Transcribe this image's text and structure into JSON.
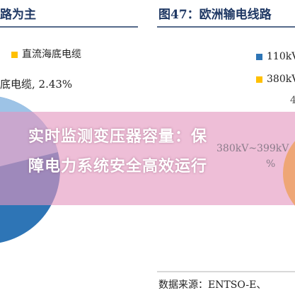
{
  "left_panel": {
    "title": "路为主",
    "legend": [
      "直流海底电缆"
    ],
    "label": "底电缆, 2.43%"
  },
  "right_panel": {
    "title": "图47：欧洲输电线路",
    "legend": [
      "110kV",
      "380kV"
    ],
    "faint_label": "380kV~399kV",
    "faint_value": "4",
    "faint_pct": "%"
  },
  "overlay": {
    "lines": [
      "实时监测变压器容量：保",
      "障电力系统安全高效运行"
    ]
  },
  "source": "数据来源：ENTSO-E、"
}
